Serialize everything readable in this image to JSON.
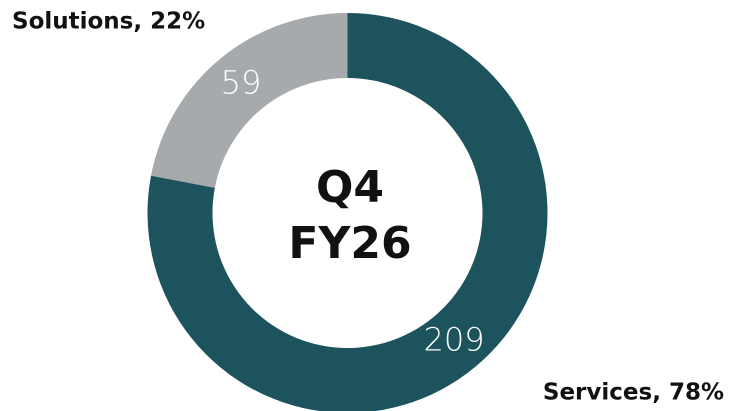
{
  "chart_data": {
    "type": "donut",
    "center_label": [
      "Q4",
      "FY26"
    ],
    "categories": [
      "Services",
      "Solutions"
    ],
    "labels": [
      "Services, 78%",
      "Solutions, 22%"
    ],
    "values": [
      209,
      59
    ],
    "colors": [
      "#1d535c",
      "#a7aaad"
    ]
  }
}
